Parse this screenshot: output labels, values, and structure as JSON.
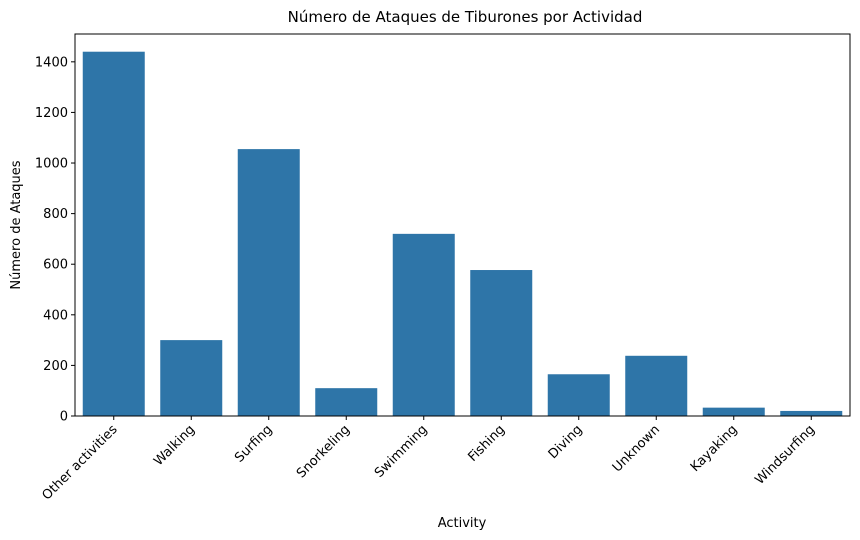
{
  "chart_data": {
    "type": "bar",
    "title": "Número de Ataques de Tiburones por Actividad",
    "xlabel": "Activity",
    "ylabel": "Número de Ataques",
    "categories": [
      "Other activities",
      "Walking",
      "Surfing",
      "Snorkeling",
      "Swimming",
      "Fishing",
      "Diving",
      "Unknown",
      "Kayaking",
      "Windsurfing"
    ],
    "values": [
      1440,
      300,
      1055,
      110,
      720,
      577,
      165,
      238,
      33,
      20
    ],
    "ylim": [
      0,
      1510
    ],
    "yticks": [
      0,
      200,
      400,
      600,
      800,
      1000,
      1200,
      1400
    ],
    "grid": false,
    "legend": "none",
    "bar_color": "#2e75a8"
  }
}
